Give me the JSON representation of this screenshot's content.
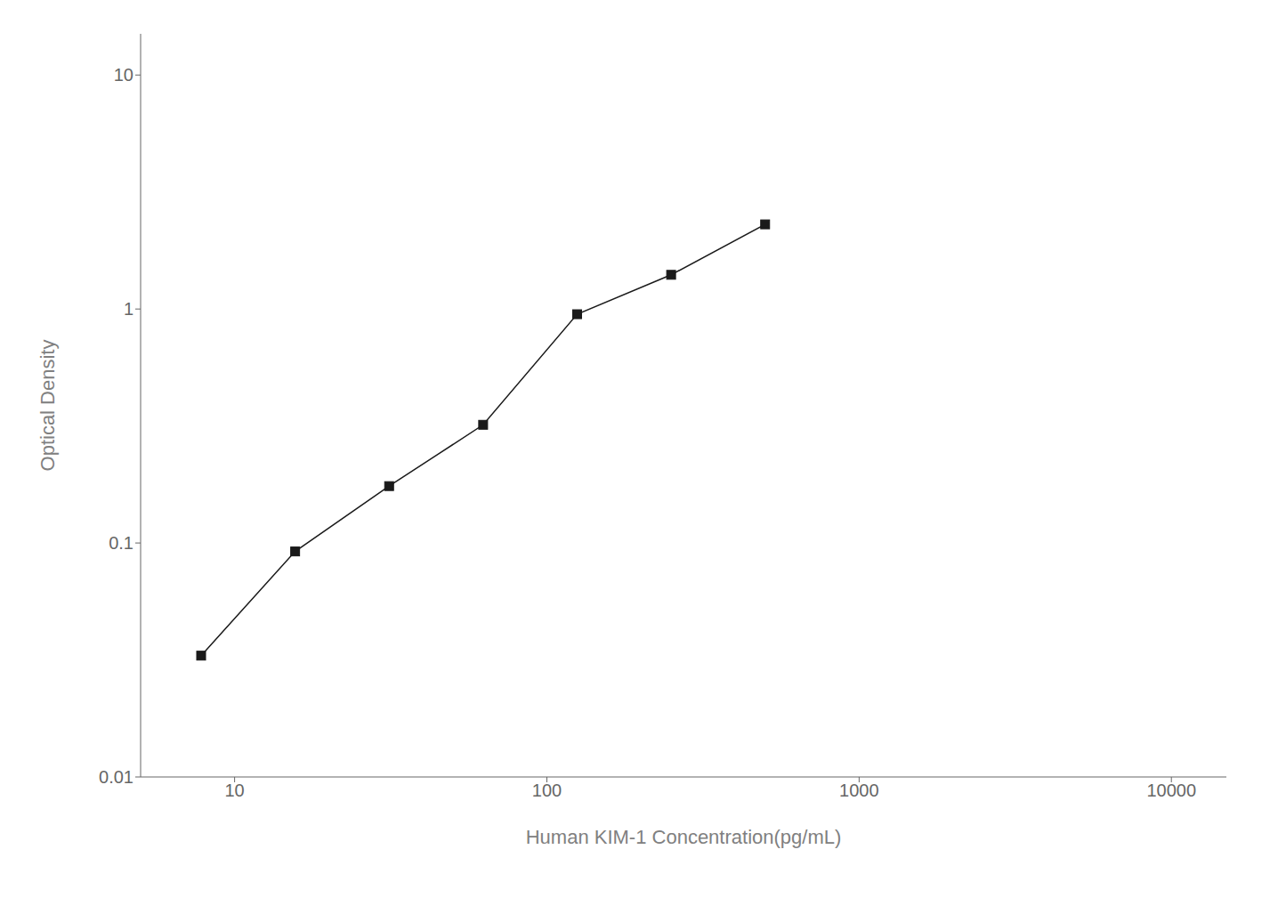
{
  "chart_data": {
    "type": "line",
    "x": [
      7.8125,
      15.625,
      31.25,
      62.5,
      125,
      250,
      500
    ],
    "values": [
      0.033,
      0.092,
      0.175,
      0.32,
      0.95,
      1.4,
      2.3
    ],
    "xlabel": "Human KIM-1 Concentration(pg/mL)",
    "ylabel": "Optical Density",
    "xlim": [
      5,
      15000
    ],
    "ylim": [
      0.01,
      15
    ],
    "xticks": [
      10,
      100,
      1000,
      10000
    ],
    "yticks": [
      0.01,
      0.1,
      1,
      10
    ],
    "log": true,
    "color": "#1a1a1a",
    "marker": "square",
    "grid": false
  }
}
